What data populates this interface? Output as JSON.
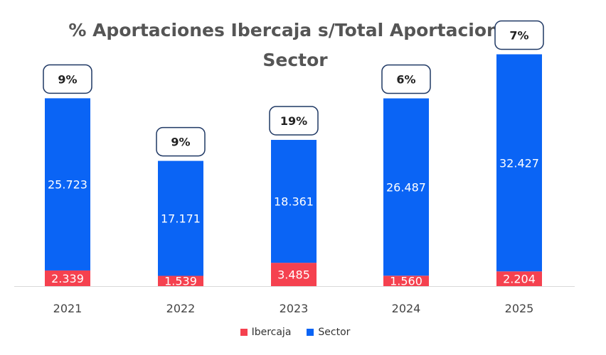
{
  "chart_data": {
    "type": "bar",
    "stacked": true,
    "title": "% Aportaciones Ibercaja s/Total Aportaciones Sector",
    "title_lines": [
      "% Aportaciones Ibercaja s/Total Aportaciones",
      "Sector"
    ],
    "categories": [
      "2021",
      "2022",
      "2023",
      "2024",
      "2025"
    ],
    "series": [
      {
        "name": "Ibercaja",
        "color": "#f5414f",
        "values": [
          2339,
          1539,
          3485,
          1560,
          2204
        ],
        "labels": [
          "2.339",
          "1.539",
          "3.485",
          "1.560",
          "2.204"
        ]
      },
      {
        "name": "Sector",
        "color": "#0a64f5",
        "values": [
          25723,
          17171,
          18361,
          26487,
          32427
        ],
        "labels": [
          "25.723",
          "17.171",
          "18.361",
          "26.487",
          "32.427"
        ]
      }
    ],
    "annotations": [
      "9%",
      "9%",
      "19%",
      "6%",
      "7%"
    ],
    "ylim": [
      0,
      35000
    ],
    "legend": "bottom-center",
    "grid": false
  }
}
